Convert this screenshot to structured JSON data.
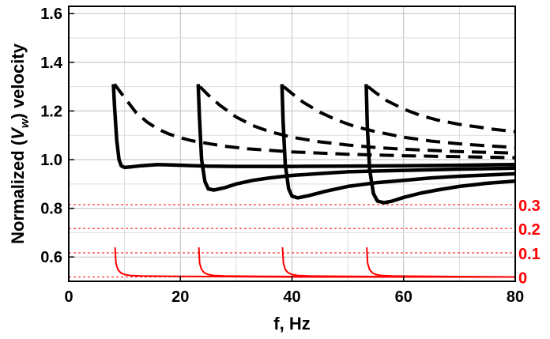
{
  "chart_data": {
    "type": "line",
    "xlabel": "f, Hz",
    "ylabel": "Normalized (Vw) velocity",
    "ylabel_parts": {
      "pre": "Normalized (",
      "var": "V",
      "sub": "w",
      "post": ") velocity"
    },
    "xlim": [
      0,
      80
    ],
    "ylim": [
      0.5,
      1.63
    ],
    "xticks": [
      0,
      20,
      40,
      60,
      80
    ],
    "yticks": [
      0.6,
      0.8,
      1.0,
      1.2,
      1.4,
      1.6
    ],
    "ytick_labels": [
      "0.6",
      "0.8",
      "1.0",
      "1.2",
      "1.4",
      "1.6"
    ],
    "grid": true,
    "right_axis": {
      "color": "#ff0000",
      "ticks": [
        0,
        0.1,
        0.2,
        0.3
      ],
      "tick_labels": [
        "0",
        "0.1",
        "0.2",
        "0.3"
      ],
      "left_axis_positions": [
        0.518,
        0.617,
        0.717,
        0.815
      ]
    },
    "series": [
      {
        "style": "solid",
        "color": "#000000",
        "x": [
          8.0,
          8.2,
          8.6,
          9.0,
          9.4,
          10.0,
          11,
          13,
          16,
          20,
          25,
          30,
          40,
          50,
          60,
          70,
          80
        ],
        "y": [
          1.31,
          1.22,
          1.08,
          1.0,
          0.975,
          0.968,
          0.97,
          0.975,
          0.98,
          0.977,
          0.973,
          0.972,
          0.972,
          0.973,
          0.975,
          0.977,
          0.98
        ]
      },
      {
        "style": "solid",
        "color": "#000000",
        "x": [
          23.2,
          23.4,
          23.8,
          24.4,
          25.0,
          26,
          28,
          30,
          33,
          36,
          40,
          45,
          50,
          60,
          70,
          80
        ],
        "y": [
          1.31,
          1.18,
          1.0,
          0.91,
          0.88,
          0.875,
          0.885,
          0.9,
          0.915,
          0.925,
          0.935,
          0.943,
          0.95,
          0.956,
          0.961,
          0.965
        ]
      },
      {
        "style": "solid",
        "color": "#000000",
        "x": [
          38.2,
          38.4,
          38.8,
          39.4,
          40.0,
          41,
          43,
          46,
          50,
          55,
          60,
          65,
          70,
          80
        ],
        "y": [
          1.31,
          1.16,
          0.98,
          0.88,
          0.85,
          0.843,
          0.852,
          0.87,
          0.89,
          0.905,
          0.915,
          0.925,
          0.932,
          0.942
        ]
      },
      {
        "style": "solid",
        "color": "#000000",
        "x": [
          53.3,
          53.5,
          53.9,
          54.6,
          55.3,
          56.5,
          58,
          60,
          63,
          66,
          70,
          75,
          80
        ],
        "y": [
          1.31,
          1.14,
          0.96,
          0.86,
          0.83,
          0.823,
          0.83,
          0.845,
          0.862,
          0.875,
          0.89,
          0.903,
          0.912
        ]
      },
      {
        "style": "dashed",
        "color": "#000000",
        "x": [
          8.2,
          9,
          10,
          12,
          14,
          16,
          18,
          20,
          22,
          25,
          28,
          32,
          36,
          40,
          50,
          60,
          70,
          80
        ],
        "y": [
          1.31,
          1.285,
          1.255,
          1.195,
          1.155,
          1.125,
          1.105,
          1.09,
          1.078,
          1.066,
          1.055,
          1.045,
          1.038,
          1.032,
          1.022,
          1.016,
          1.012,
          1.008
        ]
      },
      {
        "style": "dashed",
        "color": "#000000",
        "x": [
          23.5,
          25,
          27,
          30,
          33,
          36,
          40,
          45,
          50,
          55,
          60,
          70,
          80
        ],
        "y": [
          1.3,
          1.265,
          1.225,
          1.175,
          1.14,
          1.115,
          1.092,
          1.073,
          1.06,
          1.05,
          1.043,
          1.033,
          1.027
        ]
      },
      {
        "style": "dashed",
        "color": "#000000",
        "x": [
          38.5,
          40,
          42,
          45,
          48,
          51,
          55,
          60,
          65,
          70,
          75,
          80
        ],
        "y": [
          1.3,
          1.272,
          1.236,
          1.195,
          1.163,
          1.138,
          1.115,
          1.092,
          1.076,
          1.065,
          1.057,
          1.05
        ]
      },
      {
        "style": "dashed",
        "color": "#000000",
        "x": [
          53.6,
          55,
          57,
          60,
          63,
          66,
          70,
          73,
          76,
          80
        ],
        "y": [
          1.3,
          1.275,
          1.242,
          1.208,
          1.182,
          1.163,
          1.145,
          1.135,
          1.125,
          1.115
        ]
      },
      {
        "style": "thin",
        "color": "#ff0000",
        "x": [
          8.3,
          8.45,
          8.8,
          9.3,
          10,
          11,
          13,
          16,
          20,
          30,
          40,
          50,
          60,
          70,
          80
        ],
        "y": [
          0.64,
          0.575,
          0.548,
          0.535,
          0.528,
          0.524,
          0.522,
          0.521,
          0.52,
          0.519,
          0.518,
          0.518,
          0.518,
          0.518,
          0.518
        ]
      },
      {
        "style": "thin",
        "color": "#ff0000",
        "x": [
          23.3,
          23.45,
          23.8,
          24.3,
          25,
          26,
          28,
          31,
          35,
          45,
          55,
          65,
          80
        ],
        "y": [
          0.64,
          0.575,
          0.548,
          0.535,
          0.528,
          0.524,
          0.522,
          0.521,
          0.52,
          0.519,
          0.518,
          0.518,
          0.518
        ]
      },
      {
        "style": "thin",
        "color": "#ff0000",
        "x": [
          38.3,
          38.45,
          38.8,
          39.3,
          40,
          41,
          43,
          46,
          50,
          60,
          70,
          80
        ],
        "y": [
          0.64,
          0.575,
          0.548,
          0.535,
          0.528,
          0.524,
          0.522,
          0.521,
          0.52,
          0.519,
          0.518,
          0.518
        ]
      },
      {
        "style": "thin",
        "color": "#ff0000",
        "x": [
          53.4,
          53.55,
          53.9,
          54.4,
          55,
          56,
          58,
          61,
          65,
          72,
          80
        ],
        "y": [
          0.64,
          0.575,
          0.548,
          0.535,
          0.528,
          0.524,
          0.522,
          0.521,
          0.52,
          0.519,
          0.518
        ]
      }
    ]
  }
}
